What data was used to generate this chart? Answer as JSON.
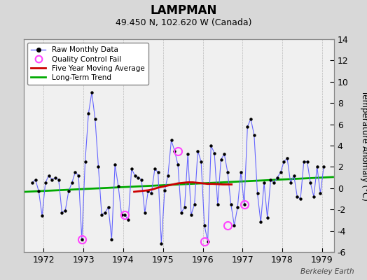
{
  "title": "LAMPMAN",
  "subtitle": "49.450 N, 102.620 W (Canada)",
  "ylabel_right": "Temperature Anomaly (°C)",
  "watermark": "Berkeley Earth",
  "ylim": [
    -6,
    14
  ],
  "yticks": [
    -6,
    -4,
    -2,
    0,
    2,
    4,
    6,
    8,
    10,
    12,
    14
  ],
  "xlim": [
    1971.5,
    1979.3
  ],
  "xticks": [
    1972,
    1973,
    1974,
    1975,
    1976,
    1977,
    1978,
    1979
  ],
  "bg_color": "#d8d8d8",
  "plot_bg_color": "#f0f0f0",
  "raw_color": "#6666ff",
  "ma_color": "#cc0000",
  "trend_color": "#00aa00",
  "qc_color": "#ff44ff",
  "raw_monthly_x": [
    1971.708,
    1971.792,
    1971.875,
    1971.958,
    1972.042,
    1972.125,
    1972.208,
    1972.292,
    1972.375,
    1972.458,
    1972.542,
    1972.625,
    1972.708,
    1972.792,
    1972.875,
    1972.958,
    1973.042,
    1973.125,
    1973.208,
    1973.292,
    1973.375,
    1973.458,
    1973.542,
    1973.625,
    1973.708,
    1973.792,
    1973.875,
    1973.958,
    1974.042,
    1974.125,
    1974.208,
    1974.292,
    1974.375,
    1974.458,
    1974.542,
    1974.625,
    1974.708,
    1974.792,
    1974.875,
    1974.958,
    1975.042,
    1975.125,
    1975.208,
    1975.292,
    1975.375,
    1975.458,
    1975.542,
    1975.625,
    1975.708,
    1975.792,
    1975.875,
    1975.958,
    1976.042,
    1976.125,
    1976.208,
    1976.292,
    1976.375,
    1976.458,
    1976.542,
    1976.625,
    1976.708,
    1976.792,
    1976.875,
    1976.958,
    1977.042,
    1977.125,
    1977.208,
    1977.292,
    1977.375,
    1977.458,
    1977.542,
    1977.625,
    1977.708,
    1977.792,
    1977.875,
    1977.958,
    1978.042,
    1978.125,
    1978.208,
    1978.292,
    1978.375,
    1978.458,
    1978.542,
    1978.625,
    1978.708,
    1978.792,
    1978.875,
    1978.958,
    1979.042
  ],
  "raw_monthly_y": [
    0.5,
    0.8,
    -0.3,
    -2.6,
    0.5,
    1.2,
    0.8,
    1.0,
    0.8,
    -2.3,
    -2.1,
    -0.3,
    0.5,
    1.5,
    1.2,
    -4.8,
    2.5,
    7.0,
    9.0,
    6.5,
    2.0,
    -2.5,
    -2.3,
    -1.8,
    -4.8,
    2.2,
    0.2,
    -2.5,
    -2.5,
    -3.0,
    1.8,
    1.2,
    1.0,
    0.8,
    -2.3,
    -0.3,
    -0.5,
    1.8,
    1.5,
    -5.2,
    -0.2,
    1.2,
    4.5,
    3.5,
    2.2,
    -2.3,
    -1.8,
    3.2,
    -2.5,
    -1.5,
    3.5,
    2.5,
    -3.5,
    -5.0,
    4.0,
    3.3,
    -1.5,
    2.7,
    3.2,
    1.5,
    -1.5,
    -3.5,
    -1.8,
    1.5,
    -1.5,
    5.8,
    6.5,
    5.0,
    -0.5,
    -3.2,
    0.5,
    -2.8,
    0.8,
    0.5,
    1.0,
    1.5,
    2.5,
    2.8,
    0.5,
    1.2,
    -0.8,
    -1.0,
    2.5,
    2.5,
    0.5,
    -0.8,
    2.0,
    -0.5,
    2.0
  ],
  "qc_fail_x": [
    1972.958,
    1974.042,
    1975.375,
    1976.042,
    1976.625,
    1977.042
  ],
  "qc_fail_y": [
    -4.8,
    -2.5,
    3.5,
    -5.0,
    -3.5,
    -1.5
  ],
  "ma_x": [
    1974.25,
    1974.375,
    1974.5,
    1974.625,
    1974.75,
    1974.875,
    1975.0,
    1975.125,
    1975.25,
    1975.375,
    1975.5,
    1975.625,
    1975.75,
    1975.875,
    1976.0,
    1976.125,
    1976.25,
    1976.375,
    1976.5,
    1976.625,
    1976.75
  ],
  "ma_y": [
    -0.35,
    -0.3,
    -0.25,
    -0.2,
    -0.1,
    0.05,
    0.15,
    0.25,
    0.35,
    0.45,
    0.5,
    0.55,
    0.55,
    0.5,
    0.45,
    0.4,
    0.4,
    0.38,
    0.35,
    0.35,
    0.35
  ],
  "trend_x": [
    1971.5,
    1979.3
  ],
  "trend_y": [
    -0.35,
    1.05
  ]
}
